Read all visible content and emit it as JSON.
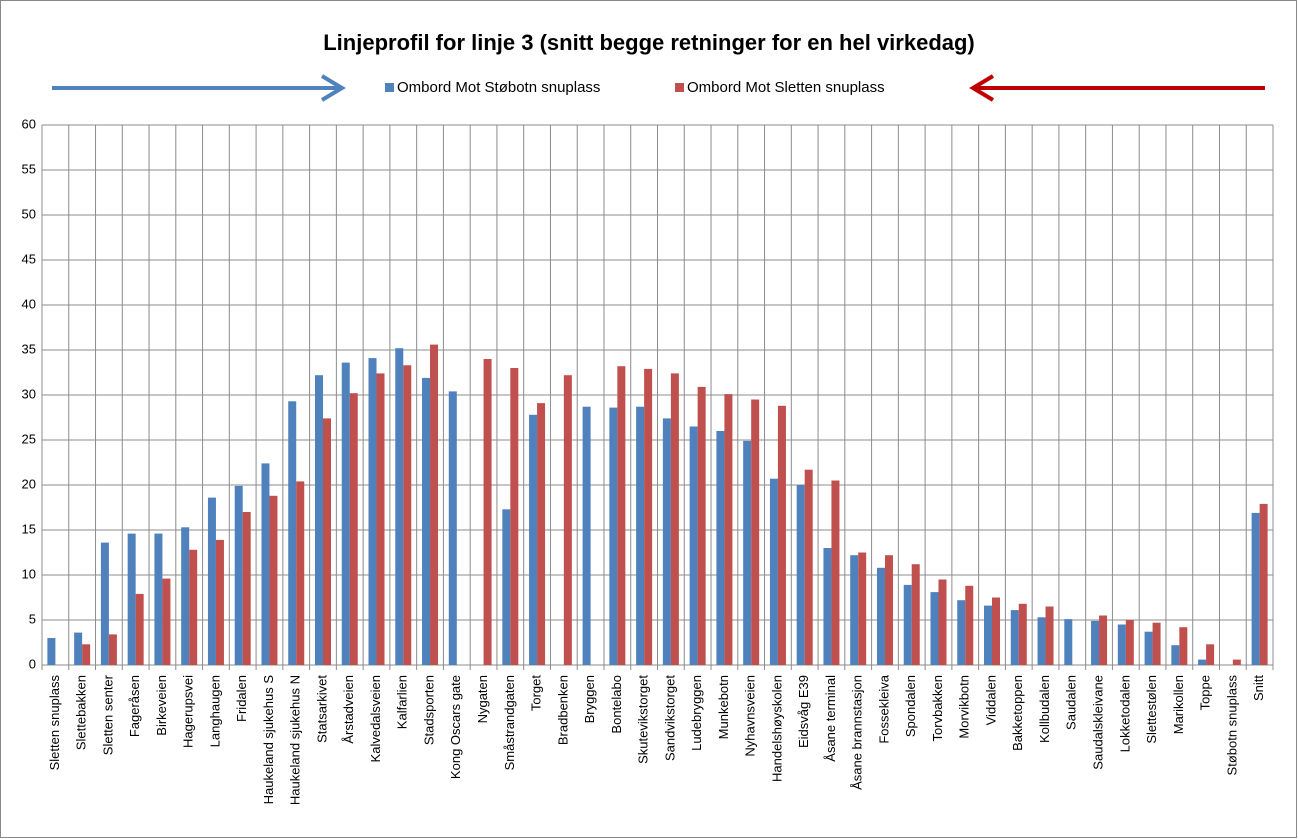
{
  "chart_data": {
    "type": "bar",
    "title": "Linjeprofil for linje 3 (snitt begge retninger for en hel virkedag)",
    "categories": [
      "Sletten snuplass",
      "Slettebakken",
      "Sletten senter",
      "Fageråsen",
      "Birkeveien",
      "Hagerupsvei",
      "Langhaugen",
      "Fridalen",
      "Haukeland sjukehus S",
      "Haukeland sjukehus N",
      "Statsarkivet",
      "Årstadveien",
      "Kalvedalsveien",
      "Kalfarlien",
      "Stadsporten",
      "Kong Oscars gate",
      "Nygaten",
      "Småstrandgaten",
      "Torget",
      "Bradbenken",
      "Bryggen",
      "Bontelabo",
      "Skutevikstorget",
      "Sandvikstorget",
      "Ludebryggen",
      "Munkebotn",
      "Nyhavnsveien",
      "Handelshøyskolen",
      "Eidsvåg E39",
      "Åsane terminal",
      "Åsane brannstasjon",
      "Fossekleiva",
      "Spondalen",
      "Torvbakken",
      "Morvikbotn",
      "Viddalen",
      "Bakketoppen",
      "Kollbudalen",
      "Saudalen",
      "Saudalskleivane",
      "Lokketodalen",
      "Slettestølen",
      "Marikollen",
      "Toppe",
      "Støbotn snuplass",
      "Snitt"
    ],
    "series": [
      {
        "name": "Ombord Mot Støbotn snuplass",
        "color": "#4f81bd",
        "values": [
          3.0,
          3.6,
          13.6,
          14.6,
          14.6,
          15.3,
          18.6,
          19.9,
          22.4,
          29.3,
          32.2,
          33.6,
          34.1,
          35.2,
          31.9,
          30.4,
          null,
          17.3,
          27.8,
          null,
          28.7,
          28.6,
          28.7,
          27.4,
          26.5,
          26.0,
          24.9,
          20.7,
          20.0,
          13.0,
          12.2,
          10.8,
          8.9,
          8.1,
          7.2,
          6.6,
          6.1,
          5.3,
          5.1,
          4.9,
          4.5,
          3.7,
          2.2,
          0.6,
          null,
          16.9
        ]
      },
      {
        "name": "Ombord Mot Sletten snuplass",
        "color": "#c0504d",
        "values": [
          null,
          2.3,
          3.4,
          7.9,
          9.6,
          12.8,
          13.9,
          17.0,
          18.8,
          20.4,
          27.4,
          30.2,
          32.4,
          33.3,
          35.6,
          null,
          34.0,
          33.0,
          29.1,
          32.2,
          null,
          33.2,
          32.9,
          32.4,
          30.9,
          30.1,
          29.5,
          28.8,
          21.7,
          20.5,
          12.5,
          12.2,
          11.2,
          9.5,
          8.8,
          7.5,
          6.8,
          6.5,
          null,
          5.5,
          5.0,
          4.7,
          4.2,
          2.3,
          0.6,
          17.9
        ]
      }
    ],
    "ylim": [
      0,
      60
    ],
    "yticks": [
      0,
      5,
      10,
      15,
      20,
      25,
      30,
      35,
      40,
      45,
      50,
      55,
      60
    ],
    "grid": true
  }
}
